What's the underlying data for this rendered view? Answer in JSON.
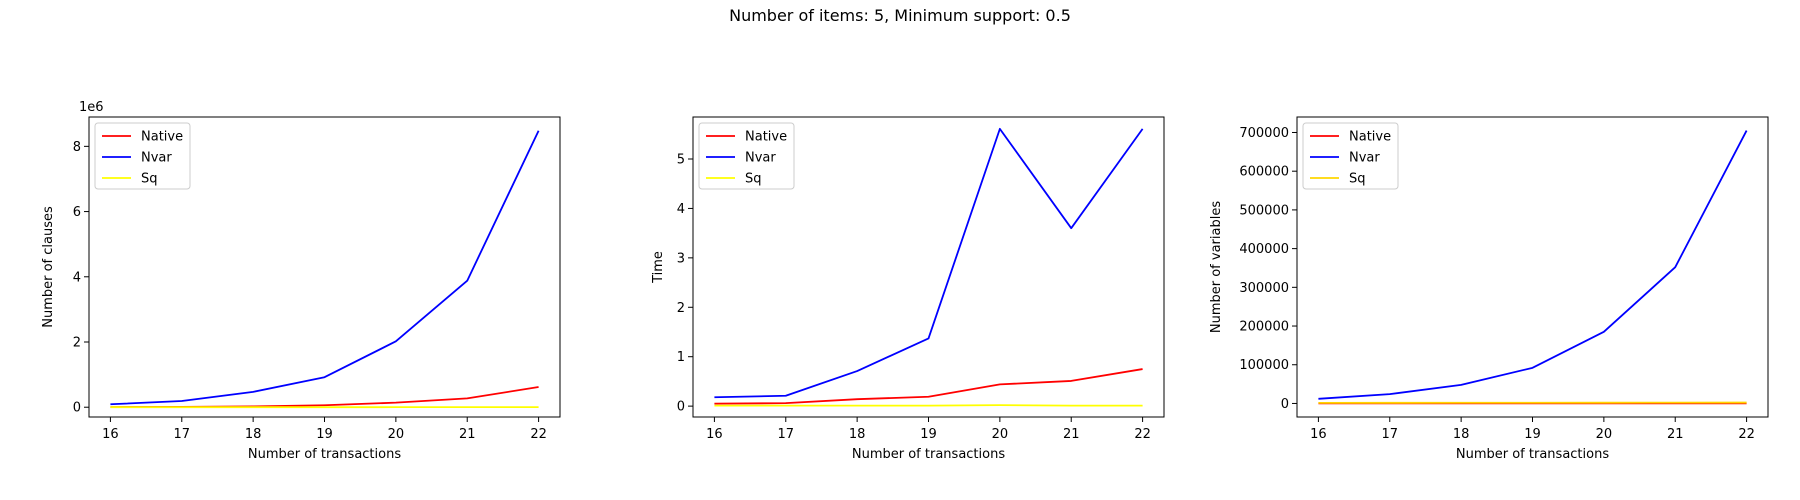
{
  "figure": {
    "title": "Number of items: 5, Minimum support: 0.5"
  },
  "chart_data": [
    {
      "type": "line",
      "xlabel": "Number of transactions",
      "ylabel": "Number of clauses",
      "offset_text": "1e6",
      "x": [
        16,
        17,
        18,
        19,
        20,
        21,
        22
      ],
      "xlim": [
        15.7,
        22.3
      ],
      "ylim": [
        -300000,
        8900000
      ],
      "yticks": [
        0,
        2000000,
        4000000,
        6000000,
        8000000
      ],
      "ytick_labels": [
        "0",
        "2",
        "4",
        "6",
        "8"
      ],
      "legend_position": "upper-left",
      "series": [
        {
          "name": "Native",
          "color": "#ff0000",
          "values": [
            3000,
            8000,
            25000,
            60000,
            140000,
            270000,
            620000
          ]
        },
        {
          "name": "Nvar",
          "color": "#0000ff",
          "values": [
            90000,
            190000,
            470000,
            920000,
            2020000,
            3880000,
            8480000
          ]
        },
        {
          "name": "Sq",
          "color": "#ffff00",
          "values": [
            300,
            500,
            800,
            1200,
            1800,
            2600,
            3800
          ]
        }
      ]
    },
    {
      "type": "line",
      "xlabel": "Number of transactions",
      "ylabel": "Time",
      "x": [
        16,
        17,
        18,
        19,
        20,
        21,
        22
      ],
      "xlim": [
        15.7,
        22.3
      ],
      "ylim": [
        -0.22,
        5.85
      ],
      "yticks": [
        0,
        1,
        2,
        3,
        4,
        5
      ],
      "ytick_labels": [
        "0",
        "1",
        "2",
        "3",
        "4",
        "5"
      ],
      "legend_position": "upper-left",
      "series": [
        {
          "name": "Native",
          "color": "#ff0000",
          "values": [
            0.05,
            0.06,
            0.14,
            0.19,
            0.44,
            0.51,
            0.75
          ]
        },
        {
          "name": "Nvar",
          "color": "#0000ff",
          "values": [
            0.18,
            0.21,
            0.71,
            1.37,
            5.61,
            3.6,
            5.61
          ]
        },
        {
          "name": "Sq",
          "color": "#ffff00",
          "values": [
            0.01,
            0.01,
            0.01,
            0.01,
            0.02,
            0.01,
            0.01
          ]
        }
      ]
    },
    {
      "type": "line",
      "xlabel": "Number of transactions",
      "ylabel": "Number of variables",
      "x": [
        16,
        17,
        18,
        19,
        20,
        21,
        22
      ],
      "xlim": [
        15.7,
        22.3
      ],
      "ylim": [
        -35000,
        740000
      ],
      "yticks": [
        0,
        100000,
        200000,
        300000,
        400000,
        500000,
        600000,
        700000
      ],
      "ytick_labels": [
        "0",
        "100000",
        "200000",
        "300000",
        "400000",
        "500000",
        "600000",
        "700000"
      ],
      "legend_position": "upper-left",
      "series": [
        {
          "name": "Native",
          "color": "#ff0000",
          "values": [
            100,
            120,
            140,
            160,
            180,
            200,
            220
          ]
        },
        {
          "name": "Nvar",
          "color": "#0000ff",
          "values": [
            12000,
            24000,
            48000,
            92000,
            185000,
            352000,
            705000
          ]
        },
        {
          "name": "Sq",
          "color": "#ffd700",
          "values": [
            1500,
            1600,
            1800,
            1900,
            2000,
            2100,
            2300
          ]
        }
      ]
    }
  ]
}
